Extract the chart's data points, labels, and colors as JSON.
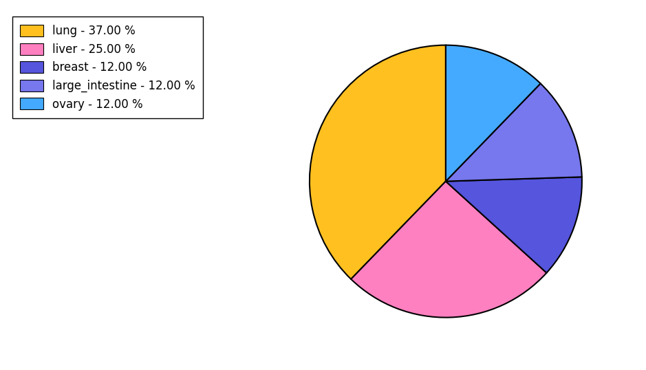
{
  "labels": [
    "lung",
    "liver",
    "breast",
    "large_intestine",
    "ovary"
  ],
  "values": [
    37.0,
    25.0,
    12.0,
    12.0,
    12.0
  ],
  "colors": [
    "#FFC020",
    "#FF80C0",
    "#5555DD",
    "#7777EE",
    "#44AAFF"
  ],
  "legend_labels": [
    "lung - 37.00 %",
    "liver - 25.00 %",
    "breast - 12.00 %",
    "large_intestine - 12.00 %",
    "ovary - 12.00 %"
  ],
  "startangle": 90,
  "figsize": [
    9.39,
    5.38
  ],
  "dpi": 100
}
